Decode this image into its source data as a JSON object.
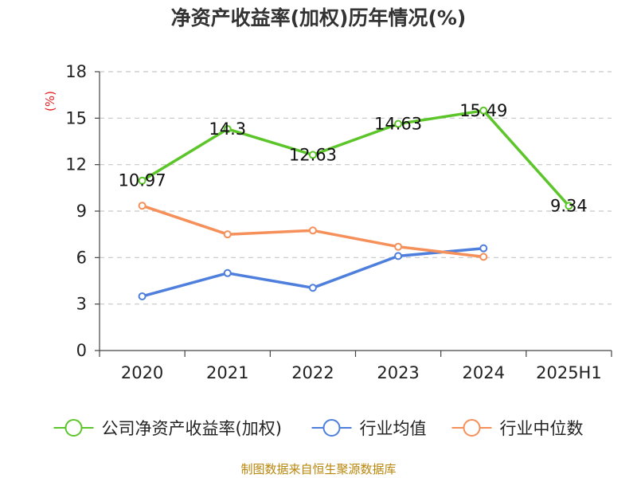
{
  "chart_data": {
    "type": "line",
    "title": "净资产收益率(加权)历年情况(%)",
    "ylabel": "(%)",
    "xlabel": "",
    "categories": [
      "2020",
      "2021",
      "2022",
      "2023",
      "2024",
      "2025H1"
    ],
    "ylim": [
      0,
      18
    ],
    "yticks": [
      0,
      3,
      6,
      9,
      12,
      15,
      18
    ],
    "grid": true,
    "legend_position": "bottom",
    "series": [
      {
        "name": "公司净资产收益率(加权)",
        "color": "#5cc52a",
        "values": [
          10.97,
          14.3,
          12.63,
          14.63,
          15.49,
          9.34
        ],
        "data_labels": [
          "10.97",
          "14.3",
          "12.63",
          "14.63",
          "15.49",
          "9.34"
        ],
        "show_labels": true
      },
      {
        "name": "行业均值",
        "color": "#4f7fdc",
        "values": [
          3.5,
          5.0,
          4.05,
          6.1,
          6.6,
          null
        ],
        "show_labels": false
      },
      {
        "name": "行业中位数",
        "color": "#f5905a",
        "values": [
          9.35,
          7.5,
          7.75,
          6.7,
          6.05,
          null
        ],
        "show_labels": false
      }
    ]
  },
  "source_note": "制图数据来自恒生聚源数据库"
}
